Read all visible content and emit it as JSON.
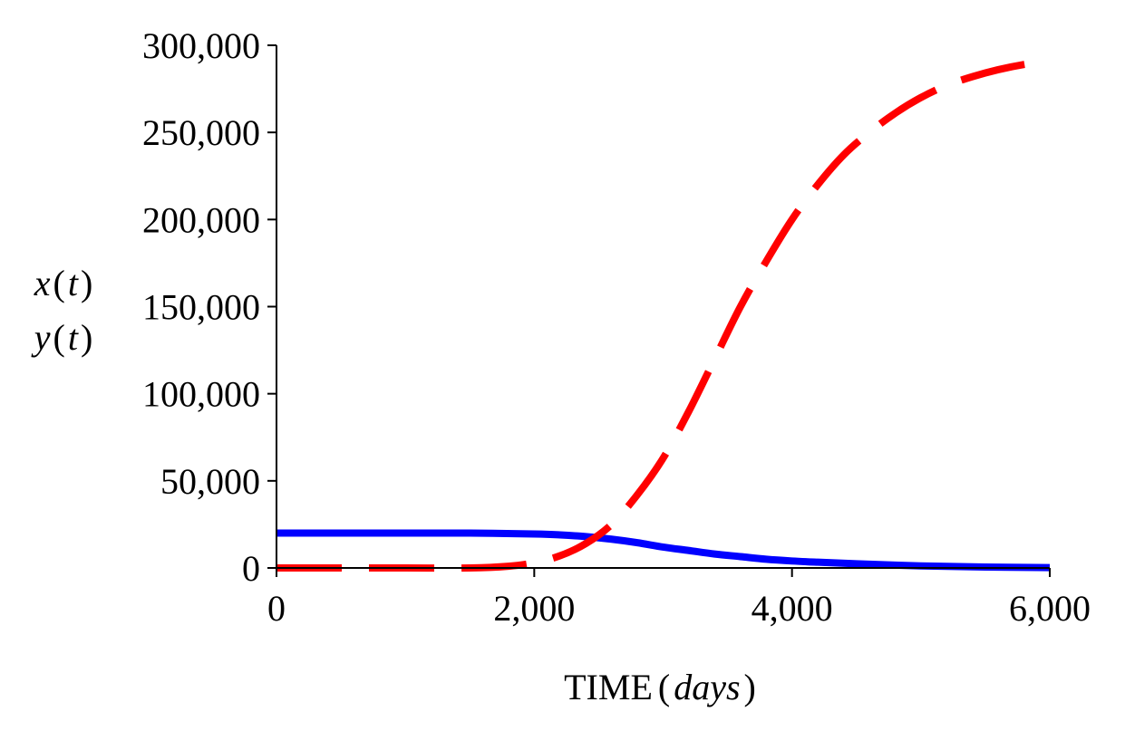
{
  "chart_data": {
    "type": "line",
    "xlabel_prefix": "TIME",
    "xlabel_open": "(",
    "xlabel_unit": "days",
    "xlabel_close": ")",
    "ylabel_line1_var": "x",
    "ylabel_line1_open": "(",
    "ylabel_line1_arg": "t",
    "ylabel_line1_close": ")",
    "ylabel_line2_var": "y",
    "ylabel_line2_open": "(",
    "ylabel_line2_arg": "t",
    "ylabel_line2_close": ")",
    "xlim": [
      0,
      6000
    ],
    "ylim": [
      0,
      300000
    ],
    "xticks": [
      0,
      2000,
      4000,
      6000
    ],
    "xtick_labels": [
      "0",
      "2,000",
      "4,000",
      "6,000"
    ],
    "yticks": [
      0,
      50000,
      100000,
      150000,
      200000,
      250000,
      300000
    ],
    "ytick_labels": [
      "0",
      "50,000",
      "100,000",
      "150,000",
      "200,000",
      "250,000",
      "300,000"
    ],
    "grid": false,
    "series": [
      {
        "color": "#0000ff",
        "style": "solid",
        "x": [
          0,
          500,
          1000,
          1500,
          2000,
          2200,
          2400,
          2600,
          2800,
          3000,
          3200,
          3400,
          3600,
          3800,
          4000,
          4200,
          4500,
          5000,
          5500,
          6000
        ],
        "y": [
          20000,
          20000,
          20000,
          20000,
          19500,
          19000,
          18000,
          16500,
          14500,
          12000,
          10000,
          8000,
          6500,
          5000,
          4000,
          3300,
          2400,
          1200,
          500,
          200
        ]
      },
      {
        "color": "#ff0000",
        "style": "dashed",
        "x": [
          0,
          500,
          1000,
          1500,
          1800,
          2000,
          2200,
          2400,
          2600,
          2800,
          3000,
          3200,
          3400,
          3600,
          3800,
          4000,
          4200,
          4400,
          4600,
          4800,
          5000,
          5200,
          5400,
          5600,
          5800,
          6000
        ],
        "y": [
          0,
          0,
          0,
          0,
          1000,
          3000,
          7000,
          14000,
          25000,
          42000,
          63000,
          90000,
          120000,
          150000,
          176000,
          200000,
          220000,
          237000,
          250000,
          261000,
          270000,
          277000,
          282000,
          286000,
          289000,
          291000
        ]
      }
    ]
  }
}
